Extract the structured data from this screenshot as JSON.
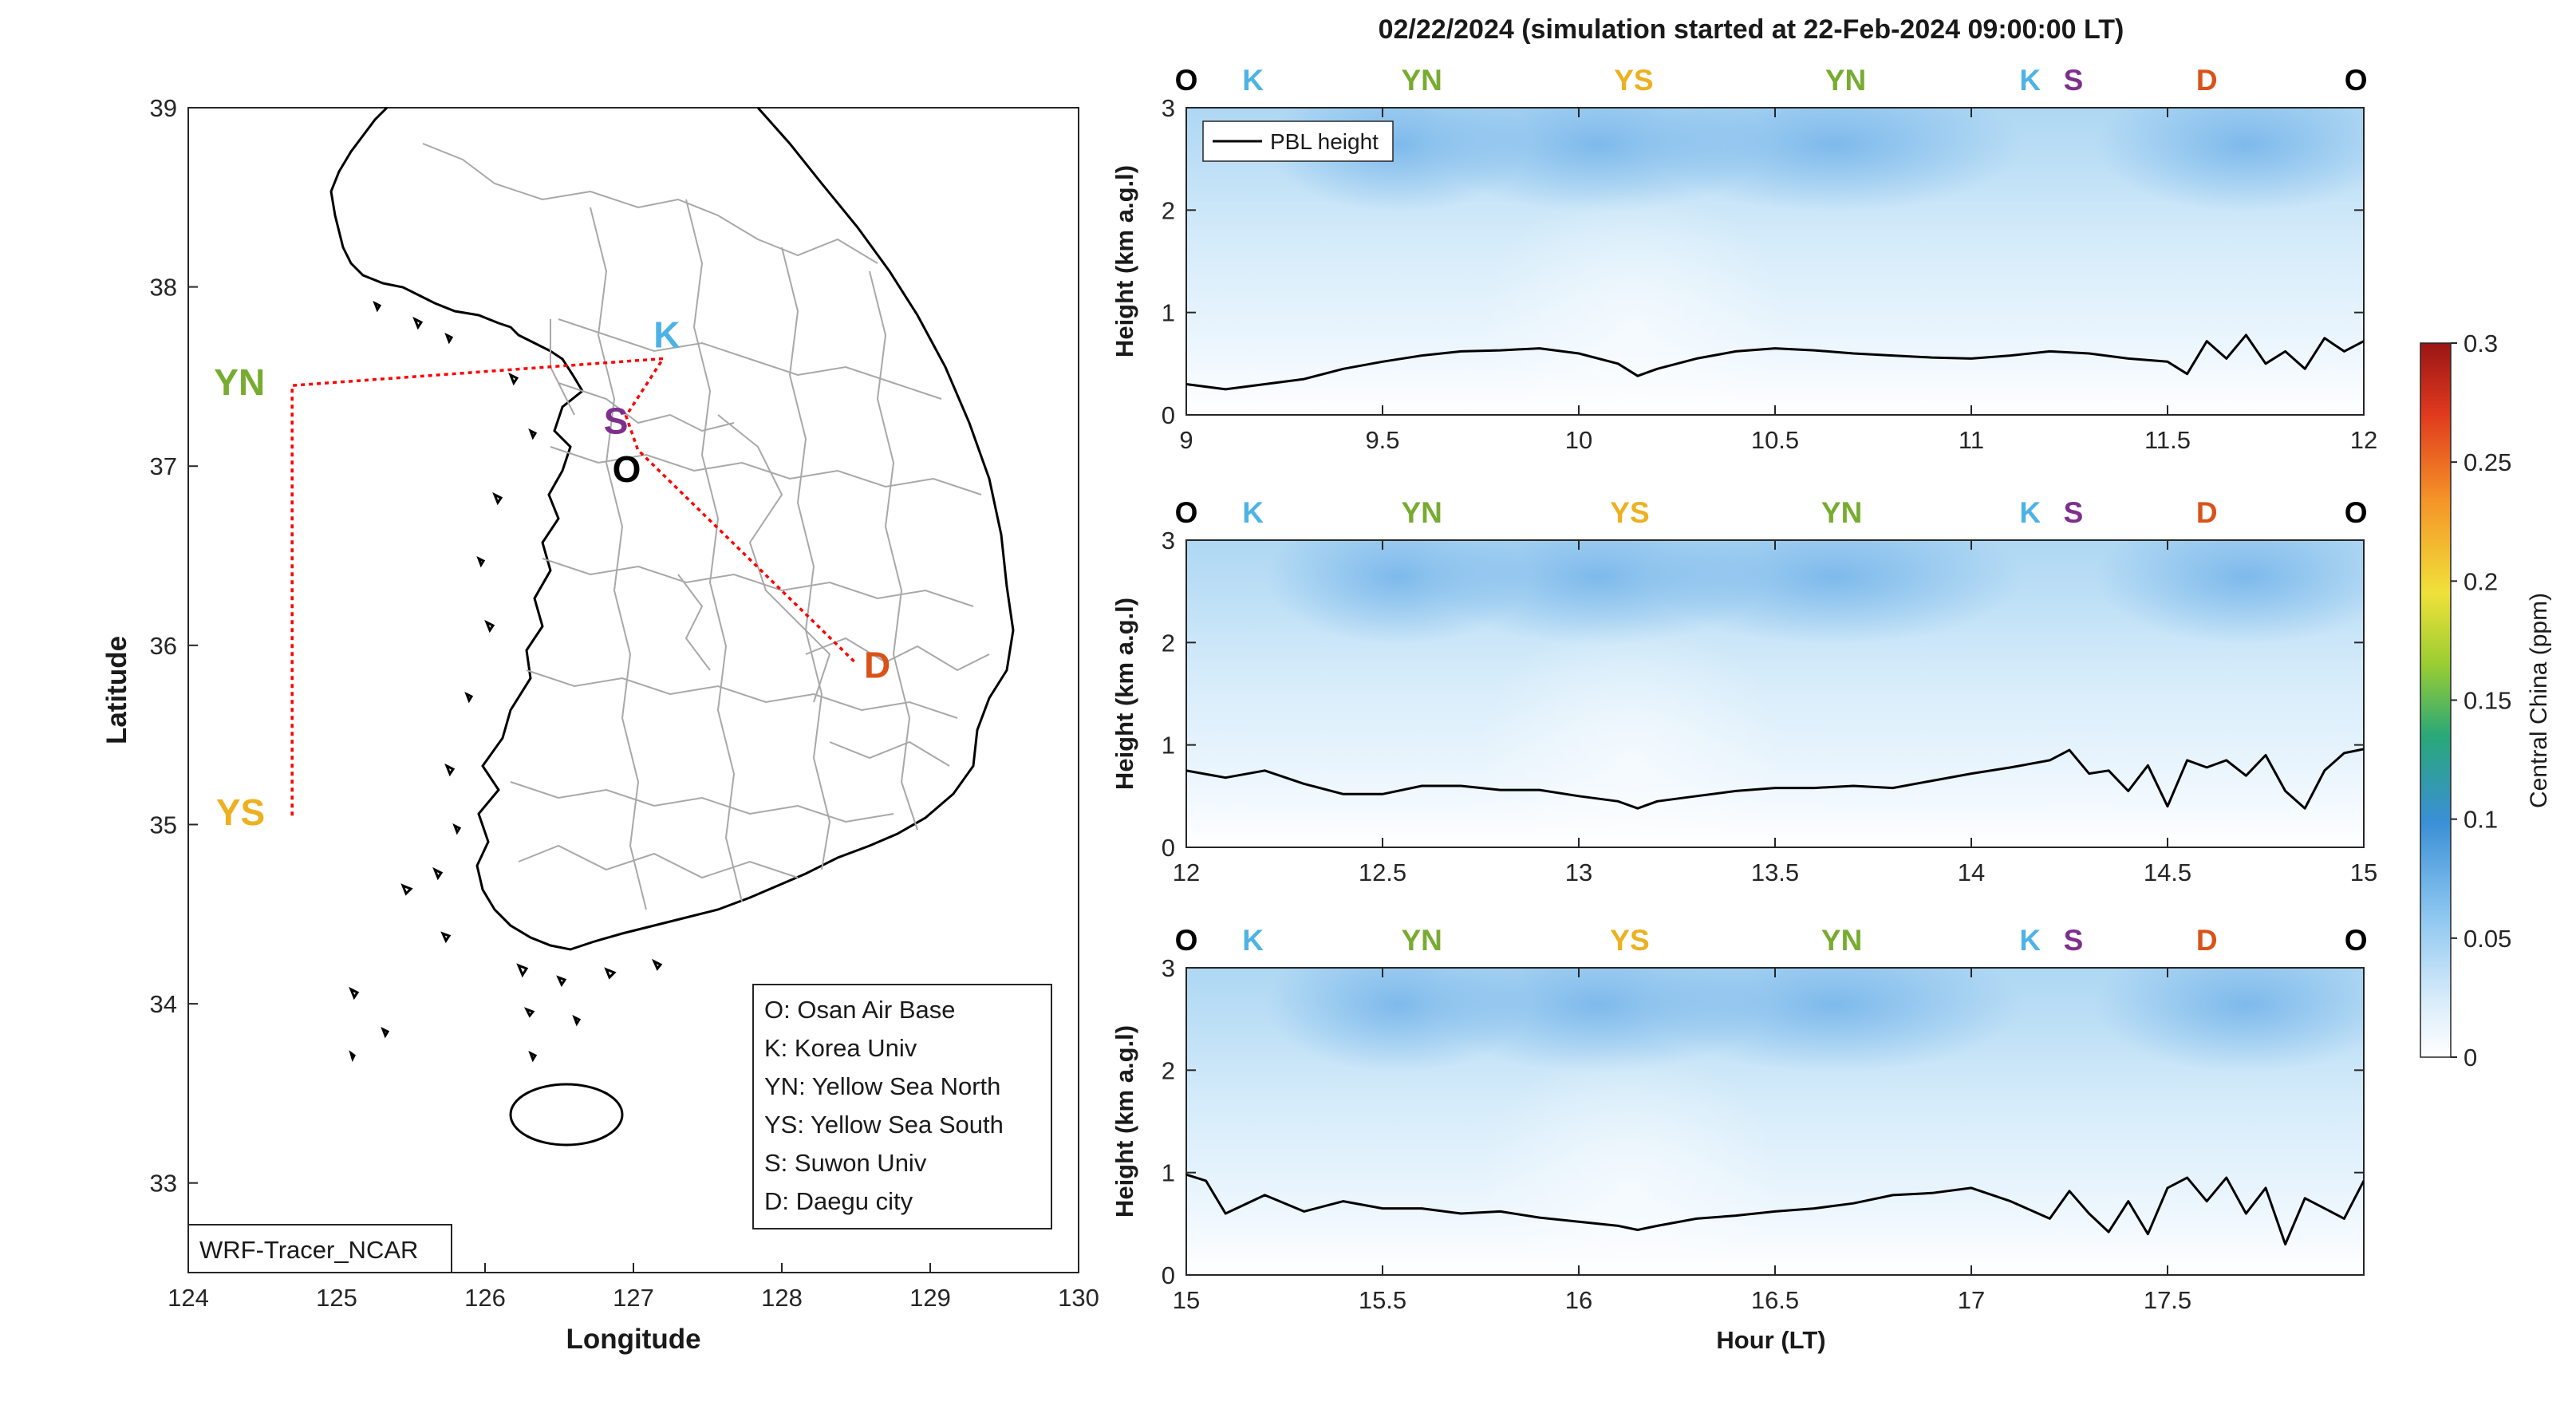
{
  "title": "02/22/2024 (simulation started at 22-Feb-2024 09:00:00 LT)",
  "colors": {
    "O": "#000000",
    "K": "#4db3e6",
    "YN": "#77ac30",
    "YS": "#edb120",
    "S": "#7e2f8e",
    "D": "#d95319",
    "track": "#ff0000",
    "pbl": "#000000"
  },
  "map": {
    "xlabel": "Longitude",
    "ylabel": "Latitude",
    "xticks": [
      "124",
      "125",
      "126",
      "127",
      "128",
      "129",
      "130"
    ],
    "yticks": [
      "33",
      "34",
      "35",
      "36",
      "37",
      "38",
      "39"
    ],
    "xlim": [
      124,
      130
    ],
    "ylim": [
      32.5,
      39
    ],
    "source_label": "WRF-Tracer_NCAR",
    "sites": [
      {
        "code": "YN",
        "lon": 124.7,
        "lat": 37.45
      },
      {
        "code": "YS",
        "lon": 124.7,
        "lat": 35.05
      },
      {
        "code": "K",
        "lon": 127.2,
        "lat": 37.6
      },
      {
        "code": "S",
        "lon": 126.95,
        "lat": 37.28
      },
      {
        "code": "O",
        "lon": 127.03,
        "lat": 37.09
      },
      {
        "code": "D",
        "lon": 128.5,
        "lat": 35.9
      }
    ],
    "legend": [
      "O: Osan Air Base",
      "K: Korea Univ",
      "YN: Yellow Sea North",
      "YS: Yellow Sea South",
      "S: Suwon Univ",
      "D: Daegu city"
    ]
  },
  "curtain": {
    "ylabel": "Height (km a.g.l)",
    "xlabel": "Hour (LT)",
    "legend_label": "PBL height",
    "colorbar_label": "Central China (ppm)",
    "colorbar_ticks": [
      "0",
      "0.05",
      "0.1",
      "0.15",
      "0.2",
      "0.25",
      "0.3"
    ],
    "clim": [
      0,
      0.3
    ],
    "yticks": [
      "0",
      "1",
      "2",
      "3"
    ],
    "ylim": [
      0,
      3
    ],
    "panels": [
      {
        "xlim": [
          9,
          12
        ],
        "xticks": [
          "9",
          "9.5",
          "10",
          "10.5",
          "11",
          "11.5",
          "12"
        ],
        "sites": [
          {
            "code": "O",
            "hour": 9.0
          },
          {
            "code": "K",
            "hour": 9.17
          },
          {
            "code": "YN",
            "hour": 9.6
          },
          {
            "code": "YS",
            "hour": 10.14
          },
          {
            "code": "YN",
            "hour": 10.68
          },
          {
            "code": "K",
            "hour": 11.15
          },
          {
            "code": "S",
            "hour": 11.26
          },
          {
            "code": "D",
            "hour": 11.6
          },
          {
            "code": "O",
            "hour": 11.98
          }
        ]
      },
      {
        "xlim": [
          12,
          15
        ],
        "xticks": [
          "12",
          "12.5",
          "13",
          "13.5",
          "14",
          "14.5",
          "15"
        ],
        "sites": [
          {
            "code": "O",
            "hour": 12.0
          },
          {
            "code": "K",
            "hour": 12.17
          },
          {
            "code": "YN",
            "hour": 12.6
          },
          {
            "code": "YS",
            "hour": 13.13
          },
          {
            "code": "YN",
            "hour": 13.67
          },
          {
            "code": "K",
            "hour": 14.15
          },
          {
            "code": "S",
            "hour": 14.26
          },
          {
            "code": "D",
            "hour": 14.6
          },
          {
            "code": "O",
            "hour": 14.98
          }
        ]
      },
      {
        "xlim": [
          15,
          18
        ],
        "xticks": [
          "15",
          "15.5",
          "16",
          "16.5",
          "17",
          "17.5"
        ],
        "sites": [
          {
            "code": "O",
            "hour": 15.0
          },
          {
            "code": "K",
            "hour": 15.17
          },
          {
            "code": "YN",
            "hour": 15.6
          },
          {
            "code": "YS",
            "hour": 16.13
          },
          {
            "code": "YN",
            "hour": 16.67
          },
          {
            "code": "K",
            "hour": 17.15
          },
          {
            "code": "S",
            "hour": 17.26
          },
          {
            "code": "D",
            "hour": 17.6
          },
          {
            "code": "O",
            "hour": 17.98
          }
        ]
      }
    ]
  },
  "chart_data": [
    {
      "type": "line",
      "title": "PBL height",
      "xlabel": "",
      "ylabel": "Height (km a.g.l)",
      "xlim": [
        9,
        12
      ],
      "ylim": [
        0,
        3
      ],
      "x": [
        9.0,
        9.1,
        9.2,
        9.3,
        9.4,
        9.5,
        9.6,
        9.7,
        9.8,
        9.9,
        10.0,
        10.1,
        10.15,
        10.2,
        10.3,
        10.4,
        10.5,
        10.6,
        10.7,
        10.8,
        10.9,
        11.0,
        11.1,
        11.2,
        11.3,
        11.4,
        11.5,
        11.55,
        11.6,
        11.65,
        11.7,
        11.75,
        11.8,
        11.85,
        11.9,
        11.95,
        12.0
      ],
      "series": [
        {
          "name": "PBL height",
          "values": [
            0.3,
            0.25,
            0.3,
            0.35,
            0.45,
            0.52,
            0.58,
            0.62,
            0.63,
            0.65,
            0.6,
            0.5,
            0.38,
            0.45,
            0.55,
            0.62,
            0.65,
            0.63,
            0.6,
            0.58,
            0.56,
            0.55,
            0.58,
            0.62,
            0.6,
            0.55,
            0.52,
            0.4,
            0.72,
            0.55,
            0.78,
            0.5,
            0.62,
            0.45,
            0.75,
            0.62,
            0.72
          ]
        }
      ]
    },
    {
      "type": "line",
      "title": "PBL height",
      "xlabel": "",
      "ylabel": "Height (km a.g.l)",
      "xlim": [
        12,
        15
      ],
      "ylim": [
        0,
        3
      ],
      "x": [
        12.0,
        12.1,
        12.2,
        12.3,
        12.4,
        12.5,
        12.6,
        12.7,
        12.8,
        12.9,
        13.0,
        13.1,
        13.15,
        13.2,
        13.3,
        13.4,
        13.5,
        13.6,
        13.7,
        13.8,
        13.9,
        14.0,
        14.1,
        14.2,
        14.25,
        14.3,
        14.35,
        14.4,
        14.45,
        14.5,
        14.55,
        14.6,
        14.65,
        14.7,
        14.75,
        14.8,
        14.85,
        14.9,
        14.95,
        15.0
      ],
      "series": [
        {
          "name": "PBL height",
          "values": [
            0.75,
            0.68,
            0.75,
            0.62,
            0.52,
            0.52,
            0.6,
            0.6,
            0.56,
            0.56,
            0.5,
            0.45,
            0.38,
            0.45,
            0.5,
            0.55,
            0.58,
            0.58,
            0.6,
            0.58,
            0.65,
            0.72,
            0.78,
            0.85,
            0.95,
            0.72,
            0.75,
            0.55,
            0.8,
            0.4,
            0.85,
            0.78,
            0.85,
            0.7,
            0.9,
            0.55,
            0.38,
            0.75,
            0.92,
            0.96
          ]
        }
      ]
    },
    {
      "type": "line",
      "title": "PBL height",
      "xlabel": "Hour (LT)",
      "ylabel": "Height (km a.g.l)",
      "xlim": [
        15,
        18
      ],
      "ylim": [
        0,
        3
      ],
      "x": [
        15.0,
        15.05,
        15.1,
        15.2,
        15.3,
        15.4,
        15.5,
        15.6,
        15.7,
        15.8,
        15.9,
        16.0,
        16.1,
        16.15,
        16.2,
        16.3,
        16.4,
        16.5,
        16.6,
        16.7,
        16.8,
        16.9,
        17.0,
        17.1,
        17.2,
        17.25,
        17.3,
        17.35,
        17.4,
        17.45,
        17.5,
        17.55,
        17.6,
        17.65,
        17.7,
        17.75,
        17.8,
        17.85,
        17.9,
        17.95,
        18.0
      ],
      "series": [
        {
          "name": "PBL height",
          "values": [
            0.98,
            0.92,
            0.6,
            0.78,
            0.62,
            0.72,
            0.65,
            0.65,
            0.6,
            0.62,
            0.56,
            0.52,
            0.48,
            0.44,
            0.48,
            0.55,
            0.58,
            0.62,
            0.65,
            0.7,
            0.78,
            0.8,
            0.85,
            0.72,
            0.55,
            0.82,
            0.6,
            0.42,
            0.72,
            0.4,
            0.85,
            0.95,
            0.72,
            0.95,
            0.6,
            0.85,
            0.3,
            0.75,
            0.65,
            0.55,
            0.92
          ]
        }
      ]
    }
  ]
}
